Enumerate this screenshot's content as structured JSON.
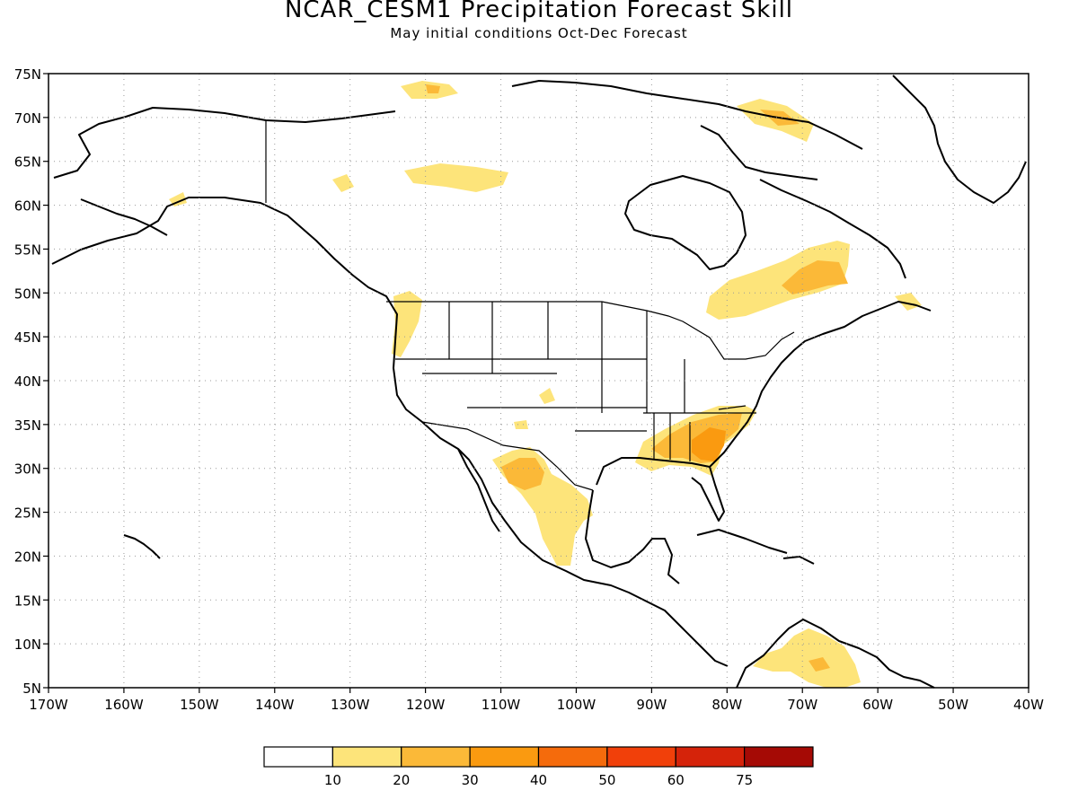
{
  "title": "NCAR_CESM1 Precipitation Forecast Skill",
  "subtitle": "May initial conditions  Oct-Dec Forecast",
  "map": {
    "lon_range": [
      -170,
      -40
    ],
    "lat_range": [
      5,
      75
    ],
    "lon_ticks": [
      "170W",
      "160W",
      "150W",
      "140W",
      "130W",
      "120W",
      "110W",
      "100W",
      "90W",
      "80W",
      "70W",
      "60W",
      "50W",
      "40W"
    ],
    "lat_ticks": [
      "5N",
      "10N",
      "15N",
      "20N",
      "25N",
      "30N",
      "35N",
      "40N",
      "45N",
      "50N",
      "55N",
      "60N",
      "65N",
      "70N",
      "75N"
    ],
    "gridlines": "dotted"
  },
  "legend": {
    "labels": [
      "10",
      "20",
      "30",
      "40",
      "50",
      "60",
      "75"
    ],
    "colors": [
      "#ffffff",
      "#fde47a",
      "#fbb938",
      "#fa9a10",
      "#f56b0c",
      "#f1400a",
      "#d5230a",
      "#a50a05"
    ]
  },
  "skill_regions": [
    {
      "name": "Southeast US",
      "level": 30
    },
    {
      "name": "Northern Mexico",
      "level": 20
    },
    {
      "name": "Quebec / Labrador",
      "level": 20
    },
    {
      "name": "Northern South America",
      "level": 20
    }
  ]
}
